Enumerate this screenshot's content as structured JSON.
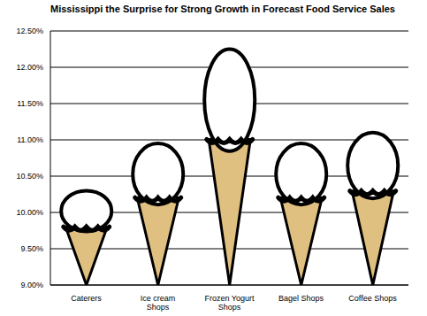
{
  "chart_data": {
    "type": "bar",
    "title": "Mississippi the Surprise for Strong Growth in Forecast Food Service Sales",
    "categories": [
      "Caterers",
      "Ice cream Shops",
      "Frozen Yogurt Shops",
      "Bagel Shops",
      "Coffee Shops"
    ],
    "values": [
      10.3,
      10.95,
      12.25,
      10.95,
      11.1
    ],
    "color": "#e0c080",
    "ylim": [
      9,
      12.5
    ],
    "yticks": [
      {
        "value": 9,
        "label": "9.00%"
      },
      {
        "value": 9.5,
        "label": "9.50%"
      },
      {
        "value": 10,
        "label": "10.00%"
      },
      {
        "value": 10.5,
        "label": "10.50%"
      },
      {
        "value": 11,
        "label": "11.00%"
      },
      {
        "value": 11.5,
        "label": "11.50%"
      },
      {
        "value": 12,
        "label": "12.00%"
      },
      {
        "value": 12.5,
        "label": "12.50%"
      }
    ],
    "grid": true
  }
}
